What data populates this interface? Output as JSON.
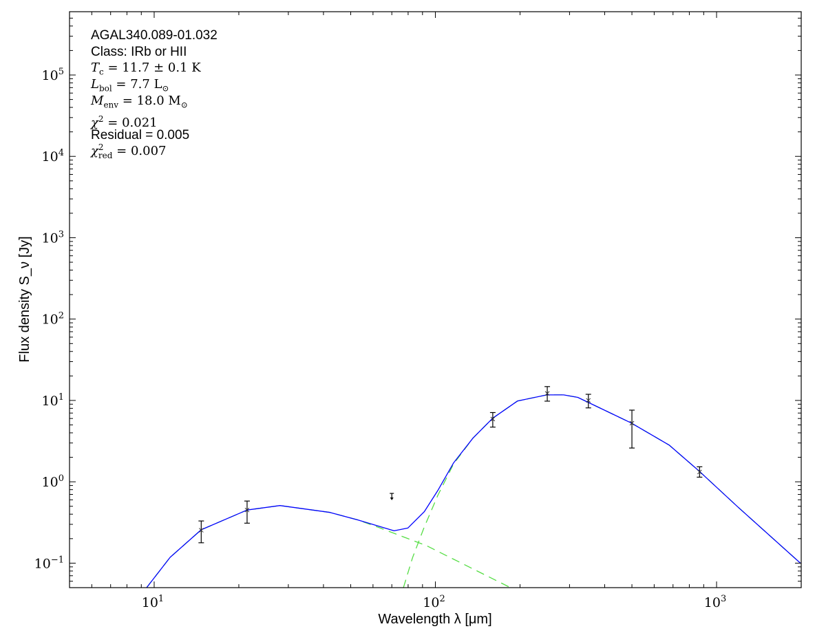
{
  "chart_data": {
    "type": "line",
    "xscale": "log",
    "yscale": "log",
    "xlim": [
      5,
      2000
    ],
    "ylim": [
      0.05,
      600000
    ],
    "grid": false,
    "xlabel": "Wavelength λ [μm]",
    "ylabel": "Flux density S_ν [Jy]",
    "xticks": [
      {
        "value": 10,
        "label": "10",
        "exp": "1"
      },
      {
        "value": 100,
        "label": "10",
        "exp": "2"
      },
      {
        "value": 1000,
        "label": "10",
        "exp": "3"
      }
    ],
    "yticks": [
      {
        "value": 0.1,
        "label": "10",
        "exp": "−1"
      },
      {
        "value": 1,
        "label": "10",
        "exp": "0"
      },
      {
        "value": 10,
        "label": "10",
        "exp": "1"
      },
      {
        "value": 100,
        "label": "10",
        "exp": "2"
      },
      {
        "value": 1000,
        "label": "10",
        "exp": "3"
      },
      {
        "value": 10000,
        "label": "10",
        "exp": "4"
      },
      {
        "value": 100000,
        "label": "10",
        "exp": "5"
      }
    ],
    "annotations": {
      "source": "AGAL340.089-01.032",
      "class": "Class: IRb or HII",
      "tc": {
        "sym": "T",
        "sub": "c",
        "rest": " = 11.7 ± 0.1 K"
      },
      "lbol": {
        "sym": "L",
        "sub": "bol",
        "rest": " = 7.7 L",
        "unit_sub": "⊙"
      },
      "menv": {
        "sym": "M",
        "sub": "env",
        "rest": " = 18.0 M",
        "unit_sub": "⊙"
      },
      "chi2": {
        "sym": "χ",
        "sup": "2",
        "rest": " = 0.021"
      },
      "residual": "Residual = 0.005",
      "chi2red": {
        "sym": "χ",
        "sup": "2",
        "sub": "red",
        "rest": " = 0.007"
      }
    },
    "colors": {
      "total_model": "#0000ff",
      "components": "#55dd44",
      "data": "#000000"
    },
    "data_points": [
      {
        "x": 14.7,
        "y": 0.254,
        "ylo": 0.178,
        "yhi": 0.33
      },
      {
        "x": 21.4,
        "y": 0.45,
        "ylo": 0.31,
        "yhi": 0.58
      },
      {
        "x": 160,
        "y": 5.9,
        "ylo": 4.7,
        "yhi": 7.1
      },
      {
        "x": 250,
        "y": 12.2,
        "ylo": 9.8,
        "yhi": 14.8
      },
      {
        "x": 350,
        "y": 10.0,
        "ylo": 8.1,
        "yhi": 11.9
      },
      {
        "x": 500,
        "y": 5.25,
        "ylo": 2.6,
        "yhi": 7.6
      },
      {
        "x": 870,
        "y": 1.32,
        "ylo": 1.14,
        "yhi": 1.53
      }
    ],
    "upper_limits": [
      {
        "x": 70,
        "y": 0.72
      }
    ],
    "series": [
      {
        "style": "solid",
        "x": [
          9.4,
          11.4,
          14.7,
          21.4,
          28,
          42.2,
          53,
          71.3,
          79.8,
          91.4,
          102,
          116,
          136,
          160,
          196,
          249,
          286,
          321,
          497,
          678,
          868,
          1191,
          1986
        ],
        "y": [
          0.05,
          0.118,
          0.257,
          0.45,
          0.51,
          0.42,
          0.34,
          0.25,
          0.27,
          0.43,
          0.78,
          1.7,
          3.44,
          6.06,
          9.86,
          11.7,
          11.7,
          10.9,
          5.28,
          2.83,
          1.35,
          0.49,
          0.1
        ]
      },
      {
        "style": "dashed",
        "x": [
          9.4,
          11.4,
          14.7,
          21.4,
          28,
          42.2,
          53,
          63.7,
          93,
          185
        ],
        "y": [
          0.05,
          0.118,
          0.257,
          0.45,
          0.51,
          0.42,
          0.34,
          0.27,
          0.164,
          0.05
        ]
      },
      {
        "style": "dashed",
        "x": [
          77,
          83,
          91,
          102,
          116,
          136,
          160,
          196,
          249,
          286,
          321,
          497,
          678,
          868,
          1191,
          1986
        ],
        "y": [
          0.05,
          0.117,
          0.27,
          0.68,
          1.65,
          3.44,
          6.06,
          9.86,
          11.7,
          11.7,
          10.9,
          5.28,
          2.83,
          1.35,
          0.49,
          0.1
        ]
      }
    ]
  }
}
